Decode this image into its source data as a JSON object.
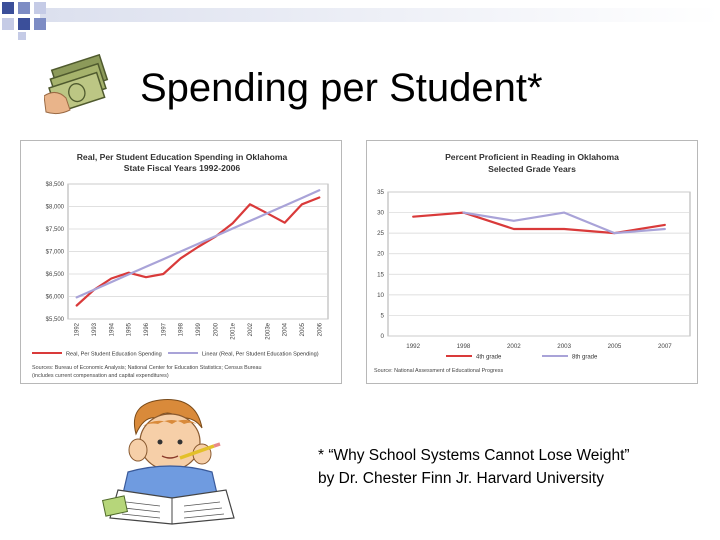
{
  "slide": {
    "title": "Spending per Student*",
    "footnote_line1": "* “Why School Systems Cannot Lose Weight”",
    "footnote_line2": "by Dr. Chester Finn Jr. Harvard University"
  },
  "colors": {
    "accent_red": "#d93a3a",
    "trend_purple": "#a9a3d8",
    "corner_blue": "#3b4f9a"
  },
  "icons": [
    "money-icon",
    "student-studying-icon"
  ],
  "chart_data": [
    {
      "type": "line",
      "title": "Real, Per Student Education Spending in Oklahoma",
      "subtitle": "State Fiscal Years 1992-2006",
      "categories": [
        "1992",
        "1993",
        "1994",
        "1995",
        "1996",
        "1997",
        "1998",
        "1999",
        "2000",
        "2001e",
        "2002",
        "2003e",
        "2004",
        "2005",
        "2006"
      ],
      "y_ticks": [
        "$5,500",
        "$6,000",
        "$6,500",
        "$7,000",
        "$7,500",
        "$8,000",
        "$8,500"
      ],
      "ylim": [
        5500,
        8500
      ],
      "grid": true,
      "legend_position": "bottom",
      "series": [
        {
          "name": "Real, Per Student Education Spending",
          "values": [
            5800,
            6150,
            6400,
            6530,
            6430,
            6500,
            6850,
            7100,
            7330,
            7630,
            8050,
            7850,
            7640,
            8050,
            8200
          ]
        },
        {
          "name": "Linear (Real, Per Student Education Spending)",
          "values": [
            5980,
            6150,
            6320,
            6490,
            6660,
            6830,
            7000,
            7170,
            7340,
            7510,
            7680,
            7850,
            8020,
            8190,
            8360
          ]
        }
      ],
      "source": "Sources: Bureau of Economic Analysis; National Center for Education Statistics; Census Bureau",
      "source_note": "(includes current compensation and capital expenditures)"
    },
    {
      "type": "line",
      "title": "Percent Proficient in Reading in Oklahoma",
      "subtitle": "Selected Grade Years",
      "categories": [
        "1992",
        "1998",
        "2002",
        "2003",
        "2005",
        "2007"
      ],
      "y_ticks": [
        "0",
        "5",
        "10",
        "15",
        "20",
        "25",
        "30",
        "35"
      ],
      "ylim": [
        0,
        35
      ],
      "grid": true,
      "legend_position": "bottom",
      "series": [
        {
          "name": "4th grade",
          "values": [
            29,
            30,
            26,
            26,
            25,
            27
          ]
        },
        {
          "name": "8th grade",
          "values": [
            null,
            30,
            28,
            30,
            25,
            26
          ]
        }
      ],
      "source": "Source: National Assessment of Educational Progress"
    }
  ]
}
